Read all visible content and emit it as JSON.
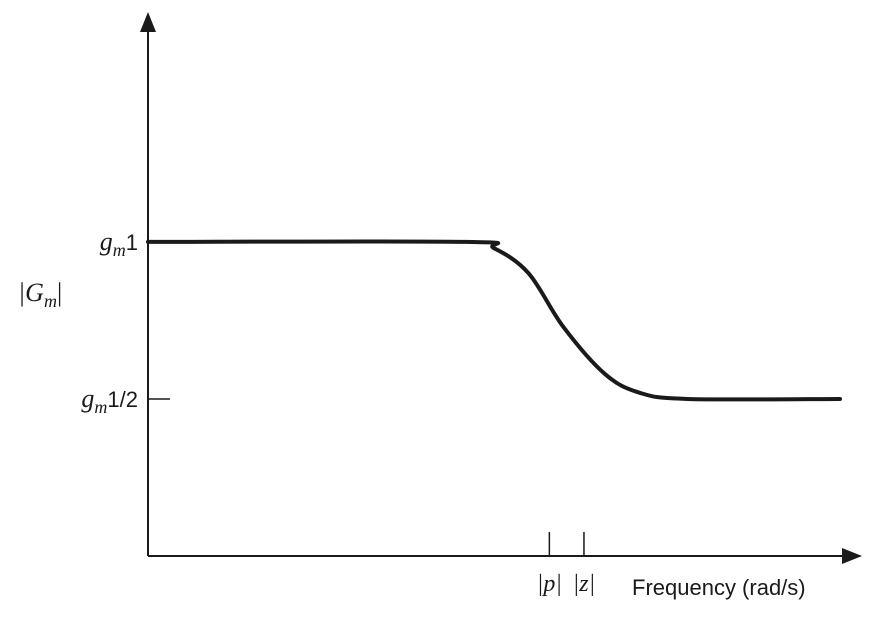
{
  "chart_data": {
    "type": "line",
    "xlabel": "Frequency (rad/s)",
    "ylabel": {
      "base": "|G",
      "sub": "m",
      "close": "|"
    },
    "y_ticks": [
      {
        "value": 1.0,
        "base": "g",
        "sub": "m",
        "suffix": "1",
        "tick_mark": false
      },
      {
        "value": 0.5,
        "base": "g",
        "sub": "m",
        "suffix": "1/2",
        "tick_mark": true
      }
    ],
    "x_ticks": [
      {
        "value": 0.58,
        "label": "|p|"
      },
      {
        "value": 0.63,
        "label": "|z|"
      }
    ],
    "x_scale": "log",
    "series": [
      {
        "x": [
          0.0,
          0.46,
          0.5,
          0.55,
          0.6,
          0.66,
          0.71,
          0.78,
          1.0
        ],
        "y": [
          1.0,
          1.0,
          0.98,
          0.9,
          0.73,
          0.58,
          0.52,
          0.5,
          0.5
        ],
        "color": "#1a1a1a"
      }
    ],
    "ylim": [
      0,
      1.7
    ],
    "xlim": [
      0,
      1
    ],
    "grid": false
  }
}
